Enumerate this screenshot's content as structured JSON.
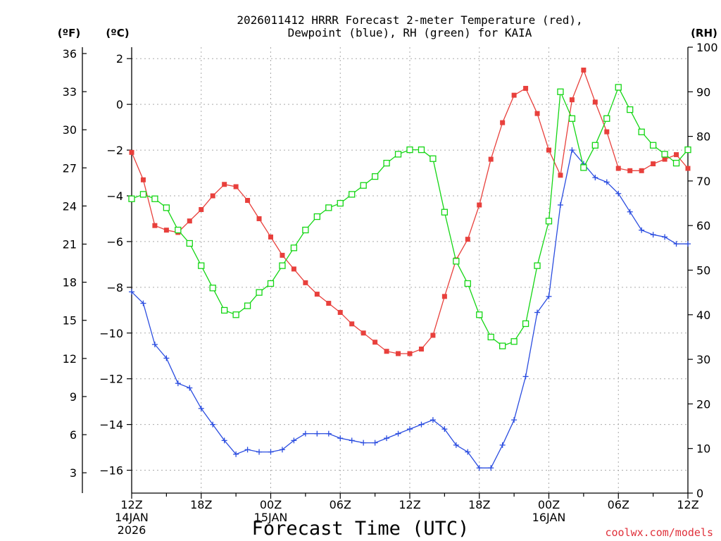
{
  "chart_data": {
    "type": "line",
    "title_line1": "2026011412 HRRR Forecast 2-meter Temperature (red),",
    "title_line2": "Dewpoint (blue), RH (green) for KAIA",
    "xlabel": "Forecast Time (UTC)",
    "unit_f": "(ºF)",
    "unit_c": "(ºC)",
    "unit_rh": "(RH)",
    "credit": "coolwx.com/models",
    "x_hours": [
      0,
      1,
      2,
      3,
      4,
      5,
      6,
      7,
      8,
      9,
      10,
      11,
      12,
      13,
      14,
      15,
      16,
      17,
      18,
      19,
      20,
      21,
      22,
      23,
      24,
      25,
      26,
      27,
      28,
      29,
      30,
      31,
      32,
      33,
      34,
      35,
      36,
      37,
      38,
      39,
      40,
      41,
      42,
      43,
      44,
      45,
      46,
      47,
      48
    ],
    "xlim": [
      0,
      48
    ],
    "x_ticks": [
      {
        "hour": 0,
        "label": "12Z",
        "sub1": "14JAN",
        "sub2": "2026"
      },
      {
        "hour": 6,
        "label": "18Z",
        "sub1": "",
        "sub2": ""
      },
      {
        "hour": 12,
        "label": "00Z",
        "sub1": "15JAN",
        "sub2": ""
      },
      {
        "hour": 18,
        "label": "06Z",
        "sub1": "",
        "sub2": ""
      },
      {
        "hour": 24,
        "label": "12Z",
        "sub1": "",
        "sub2": ""
      },
      {
        "hour": 30,
        "label": "18Z",
        "sub1": "",
        "sub2": ""
      },
      {
        "hour": 36,
        "label": "00Z",
        "sub1": "16JAN",
        "sub2": ""
      },
      {
        "hour": 42,
        "label": "06Z",
        "sub1": "",
        "sub2": ""
      },
      {
        "hour": 48,
        "label": "12Z",
        "sub1": "",
        "sub2": ""
      }
    ],
    "celsius_axis": {
      "ylim": [
        -17.0,
        2.5
      ],
      "ticks": [
        2,
        0,
        -2,
        -4,
        -6,
        -8,
        -10,
        -12,
        -14,
        -16
      ]
    },
    "fahrenheit_axis": {
      "ticks": [
        36,
        33,
        30,
        27,
        24,
        21,
        18,
        15,
        12,
        9,
        6,
        3
      ]
    },
    "rh_axis": {
      "ylim": [
        0,
        100
      ],
      "ticks": [
        100,
        90,
        80,
        70,
        60,
        50,
        40,
        30,
        20,
        10,
        0
      ]
    },
    "grid": true,
    "series": [
      {
        "name": "Temperature",
        "axis": "celsius",
        "color": "#e8403c",
        "marker": "filled-square",
        "values": [
          -2.1,
          -3.3,
          -5.3,
          -5.5,
          -5.6,
          -5.1,
          -4.6,
          -4.0,
          -3.5,
          -3.6,
          -4.2,
          -5.0,
          -5.8,
          -6.6,
          -7.2,
          -7.8,
          -8.3,
          -8.7,
          -9.1,
          -9.6,
          -10.0,
          -10.4,
          -10.8,
          -10.9,
          -10.9,
          -10.7,
          -10.1,
          -8.4,
          -6.8,
          -5.9,
          -4.4,
          -2.4,
          -0.8,
          0.4,
          0.7,
          -0.4,
          -2.0,
          -3.1,
          0.2,
          1.5,
          0.1,
          -1.2,
          -2.8,
          -2.9,
          -2.9,
          -2.6,
          -2.4,
          -2.2,
          -2.8
        ]
      },
      {
        "name": "Dewpoint",
        "axis": "celsius",
        "color": "#2b4de0",
        "marker": "plus",
        "values": [
          -8.2,
          -8.7,
          -10.5,
          -11.1,
          -12.2,
          -12.4,
          -13.3,
          -14.0,
          -14.7,
          -15.3,
          -15.1,
          -15.2,
          -15.2,
          -15.1,
          -14.7,
          -14.4,
          -14.4,
          -14.4,
          -14.6,
          -14.7,
          -14.8,
          -14.8,
          -14.6,
          -14.4,
          -14.2,
          -14.0,
          -13.8,
          -14.2,
          -14.9,
          -15.2,
          -15.9,
          -15.9,
          -14.9,
          -13.8,
          -11.9,
          -9.1,
          -8.4,
          -4.4,
          -2.0,
          -2.6,
          -3.2,
          -3.4,
          -3.9,
          -4.7,
          -5.5,
          -5.7,
          -5.8,
          -6.1,
          -6.1
        ]
      },
      {
        "name": "RH",
        "axis": "rh",
        "color": "#14d614",
        "marker": "open-square",
        "values": [
          66,
          67,
          66,
          64,
          59,
          56,
          51,
          46,
          41,
          40,
          42,
          45,
          47,
          51,
          55,
          59,
          62,
          64,
          65,
          67,
          69,
          71,
          74,
          76,
          77,
          77,
          75,
          63,
          52,
          47,
          40,
          35,
          33,
          34,
          38,
          51,
          61,
          90,
          84,
          73,
          78,
          84,
          91,
          86,
          81,
          78,
          76,
          74,
          77
        ]
      }
    ]
  }
}
